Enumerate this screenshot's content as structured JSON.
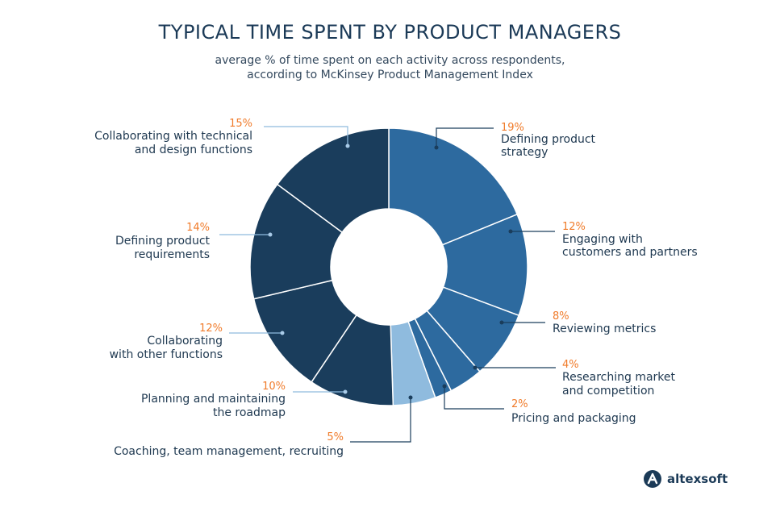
{
  "chart_data": {
    "type": "pie",
    "title": "TYPICAL TIME SPENT BY PRODUCT MANAGERS",
    "subtitle_line1": "average % of time spent on each activity across respondents,",
    "subtitle_line2": "according to McKinsey Product Management Index",
    "slices": [
      {
        "label_lines": [
          "Defining product",
          "strategy"
        ],
        "value": 19,
        "pct_label": "19%",
        "color": "#2d6a9f"
      },
      {
        "label_lines": [
          "Engaging with",
          "customers and partners"
        ],
        "value": 12,
        "pct_label": "12%",
        "color": "#2d6a9f"
      },
      {
        "label_lines": [
          "Reviewing metrics"
        ],
        "value": 8,
        "pct_label": "8%",
        "color": "#2d6a9f"
      },
      {
        "label_lines": [
          "Researching market",
          "and competition"
        ],
        "value": 4,
        "pct_label": "4%",
        "color": "#2d6a9f"
      },
      {
        "label_lines": [
          "Pricing and packaging"
        ],
        "value": 2,
        "pct_label": "2%",
        "color": "#2d6a9f"
      },
      {
        "label_lines": [
          "Coaching, team management, recruiting"
        ],
        "value": 5,
        "pct_label": "5%",
        "color": "#8fbbde"
      },
      {
        "label_lines": [
          "Planning and maintaining",
          "the roadmap"
        ],
        "value": 10,
        "pct_label": "10%",
        "color": "#1a3d5c"
      },
      {
        "label_lines": [
          "Collaborating",
          "with other functions"
        ],
        "value": 12,
        "pct_label": "12%",
        "color": "#1a3d5c"
      },
      {
        "label_lines": [
          "Defining product",
          "requirements"
        ],
        "value": 14,
        "pct_label": "14%",
        "color": "#1a3d5c"
      },
      {
        "label_lines": [
          "Collaborating with technical",
          "and design functions"
        ],
        "value": 15,
        "pct_label": "15%",
        "color": "#1a3d5c"
      }
    ]
  },
  "logo": {
    "text": "altexsoft",
    "icon": "altexsoft-logo-icon"
  },
  "colors": {
    "accent": "#f07b2a",
    "title": "#1b3a57",
    "leader_dark": "#1a3d5c",
    "leader_light": "#8fbbde"
  }
}
